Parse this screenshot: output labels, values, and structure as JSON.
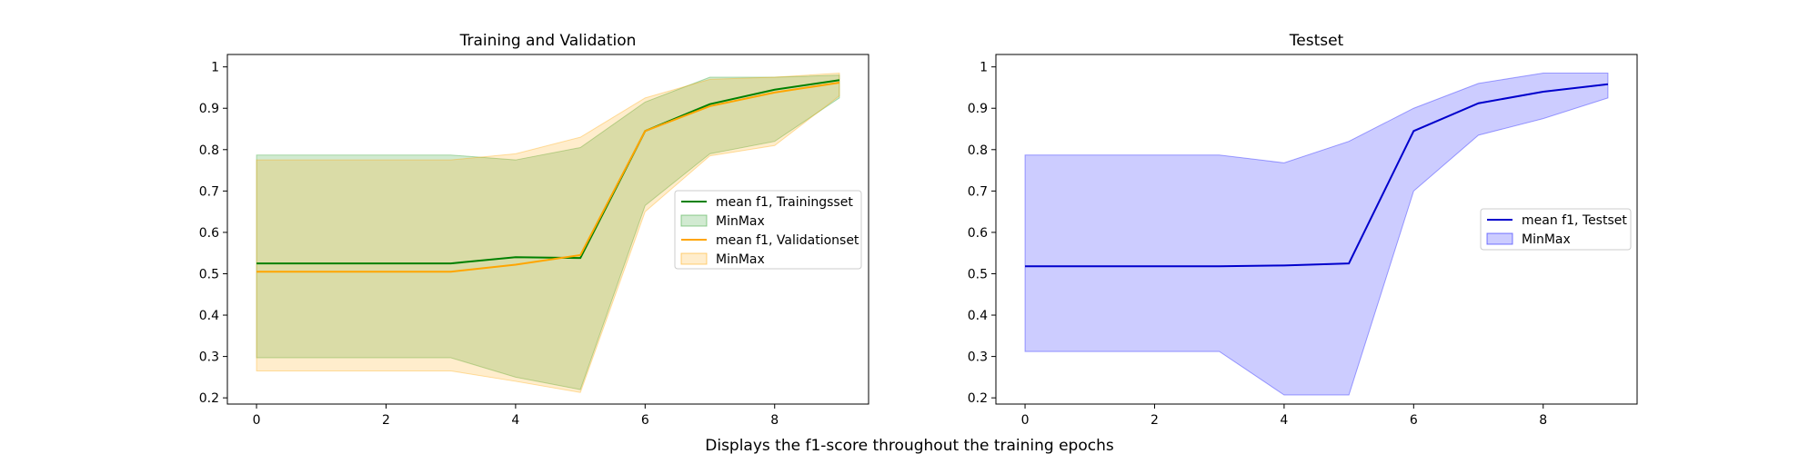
{
  "figure": {
    "suptitle": "Displays the f1-score throughout the training epochs"
  },
  "chart_data": [
    {
      "type": "line",
      "title": "Training and Validation",
      "xlabel": "",
      "ylabel": "",
      "xlim": [
        -0.45,
        9.45
      ],
      "ylim": [
        0.185,
        1.03
      ],
      "xticks": [
        0,
        2,
        4,
        6,
        8
      ],
      "yticks": [
        0.2,
        0.3,
        0.4,
        0.5,
        0.6,
        0.7,
        0.8,
        0.9,
        1.0
      ],
      "x": [
        0,
        1,
        2,
        3,
        4,
        5,
        6,
        7,
        8,
        9
      ],
      "grid": false,
      "legend_position": "center-right",
      "series": [
        {
          "name": "mean f1, Trainingsset",
          "color": "#008000",
          "values": [
            0.525,
            0.525,
            0.525,
            0.525,
            0.54,
            0.538,
            0.845,
            0.91,
            0.945,
            0.968
          ],
          "band_name": "MinMax",
          "band_color": "#2ca02c",
          "band_opacity": 0.22,
          "band_min": [
            0.297,
            0.297,
            0.297,
            0.297,
            0.25,
            0.22,
            0.665,
            0.79,
            0.82,
            0.925
          ],
          "band_max": [
            0.787,
            0.787,
            0.787,
            0.787,
            0.775,
            0.805,
            0.915,
            0.975,
            0.975,
            0.98
          ]
        },
        {
          "name": "mean f1, Validationset",
          "color": "#ffa500",
          "values": [
            0.505,
            0.505,
            0.505,
            0.505,
            0.522,
            0.545,
            0.845,
            0.905,
            0.938,
            0.962
          ],
          "band_name": "MinMax",
          "band_color": "#ffa500",
          "band_opacity": 0.2,
          "band_min": [
            0.265,
            0.265,
            0.265,
            0.265,
            0.24,
            0.213,
            0.65,
            0.785,
            0.81,
            0.93
          ],
          "band_max": [
            0.775,
            0.775,
            0.775,
            0.775,
            0.79,
            0.83,
            0.925,
            0.97,
            0.975,
            0.985
          ]
        }
      ]
    },
    {
      "type": "line",
      "title": "Testset",
      "xlabel": "",
      "ylabel": "",
      "xlim": [
        -0.45,
        9.45
      ],
      "ylim": [
        0.185,
        1.03
      ],
      "xticks": [
        0,
        2,
        4,
        6,
        8
      ],
      "yticks": [
        0.2,
        0.3,
        0.4,
        0.5,
        0.6,
        0.7,
        0.8,
        0.9,
        1.0
      ],
      "x": [
        0,
        1,
        2,
        3,
        4,
        5,
        6,
        7,
        8,
        9
      ],
      "grid": false,
      "legend_position": "center-right",
      "series": [
        {
          "name": "mean f1, Testset",
          "color": "#0000cc",
          "values": [
            0.518,
            0.518,
            0.518,
            0.518,
            0.52,
            0.525,
            0.845,
            0.912,
            0.94,
            0.958
          ],
          "band_name": "MinMax",
          "band_color": "#0000ff",
          "band_opacity": 0.2,
          "band_min": [
            0.312,
            0.312,
            0.312,
            0.312,
            0.207,
            0.207,
            0.7,
            0.835,
            0.875,
            0.925
          ],
          "band_max": [
            0.787,
            0.787,
            0.787,
            0.787,
            0.768,
            0.82,
            0.9,
            0.96,
            0.985,
            0.985
          ]
        }
      ]
    }
  ]
}
